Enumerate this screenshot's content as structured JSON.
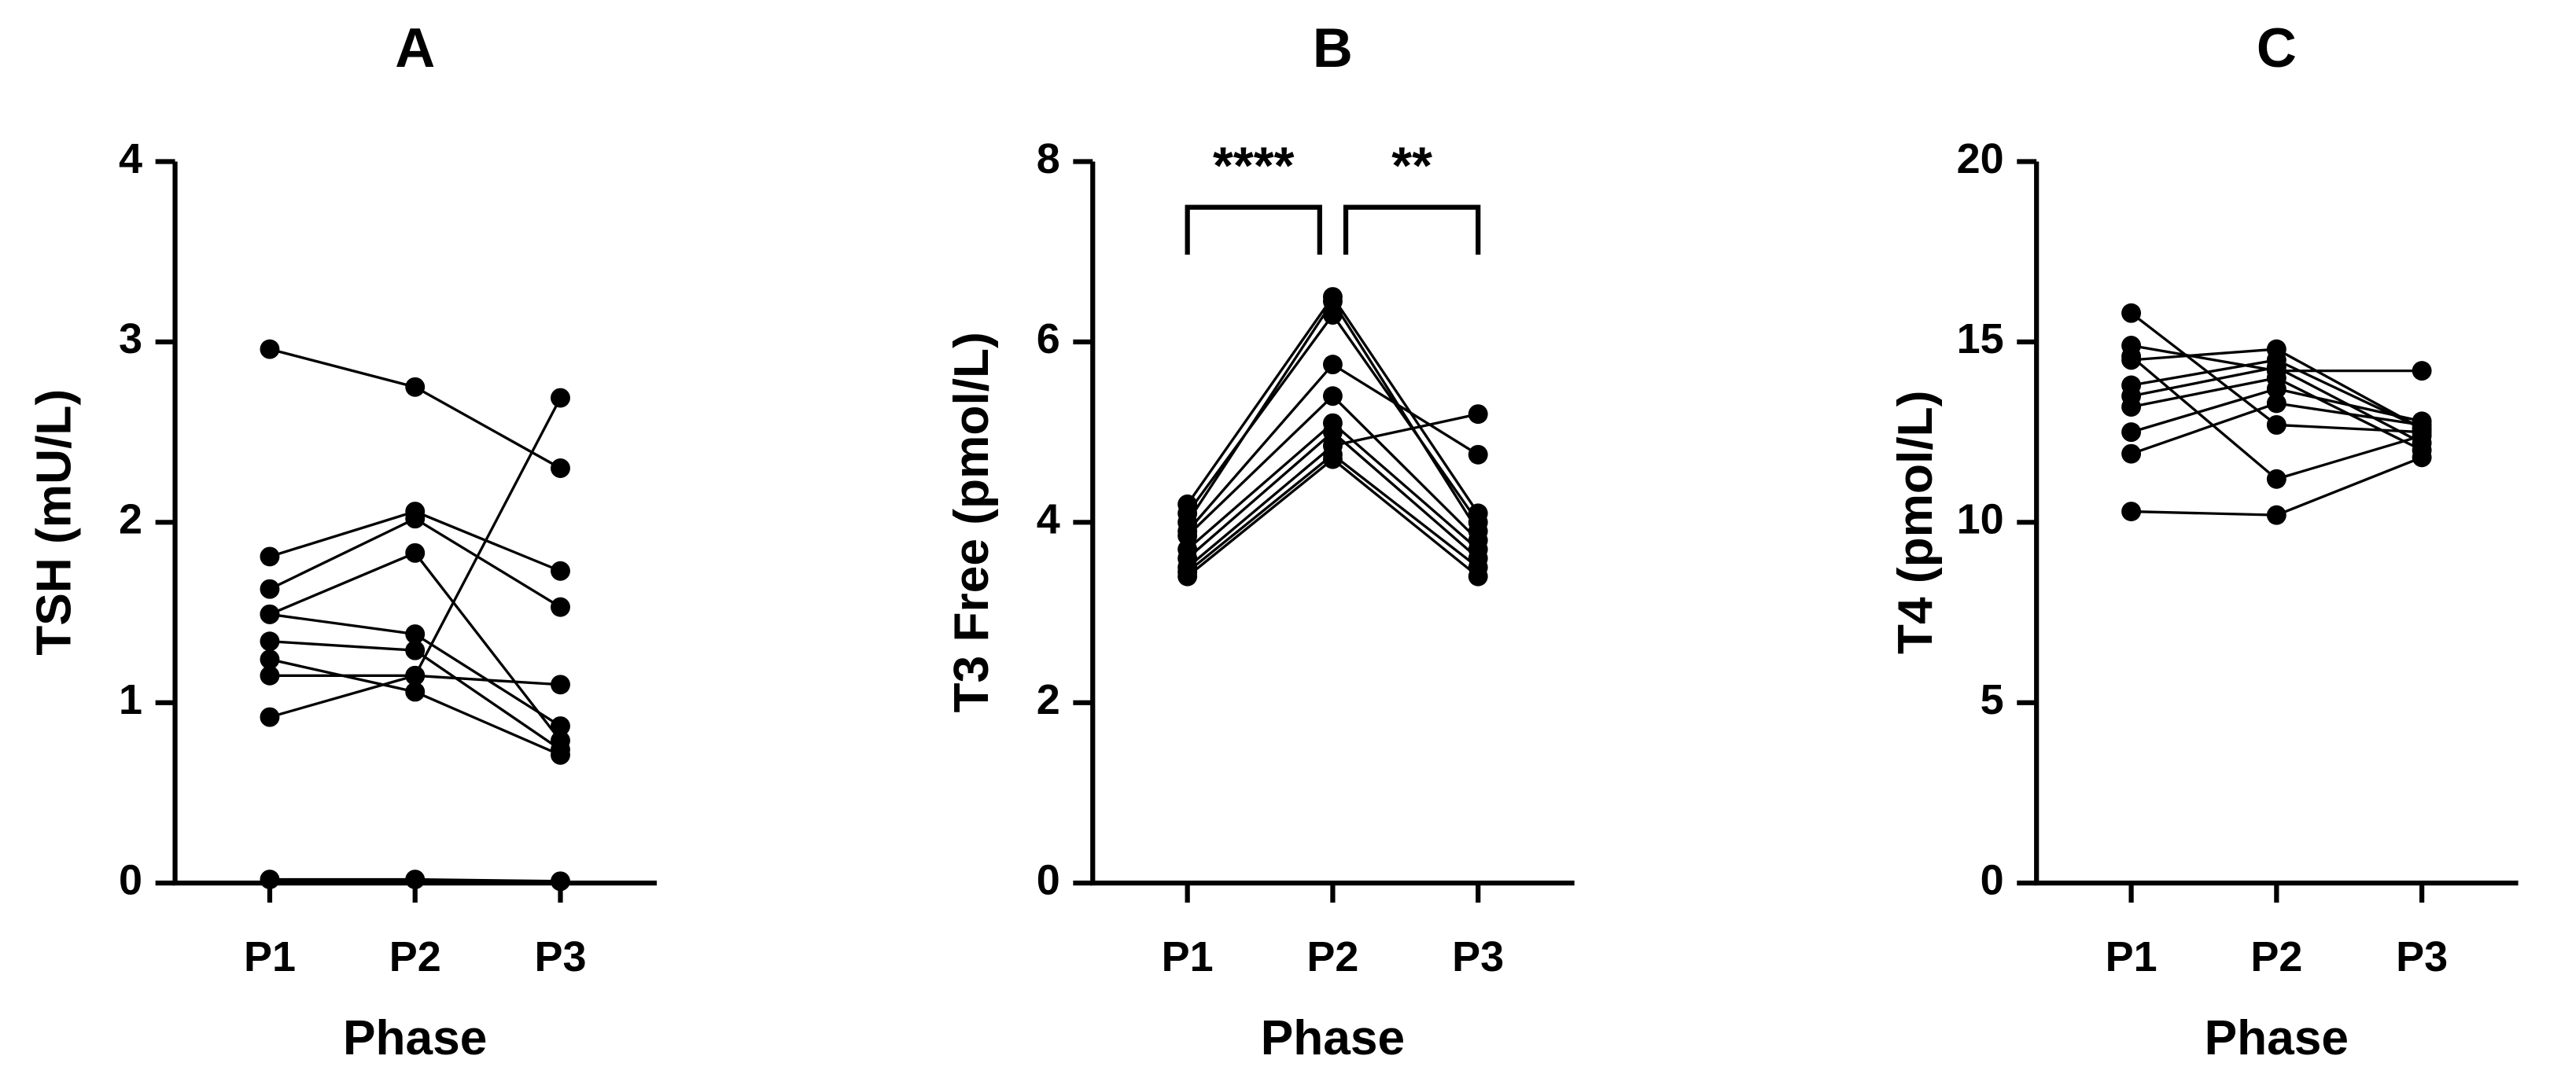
{
  "chart_data": [
    {
      "type": "line",
      "title": "A",
      "xlabel": "Phase",
      "ylabel": "TSH (mU/L)",
      "categories": [
        "P1",
        "P2",
        "P3"
      ],
      "ylim": [
        0,
        4
      ],
      "yticks": [
        0,
        1,
        2,
        3,
        4
      ],
      "grid": false,
      "color": "#000000",
      "series": [
        {
          "values": [
            2.96,
            2.75,
            2.3
          ]
        },
        {
          "values": [
            1.81,
            2.06,
            1.73
          ]
        },
        {
          "values": [
            1.63,
            2.02,
            1.53
          ]
        },
        {
          "values": [
            1.49,
            1.38,
            0.87
          ]
        },
        {
          "values": [
            1.49,
            1.83,
            0.79
          ]
        },
        {
          "values": [
            1.34,
            1.29,
            0.74
          ]
        },
        {
          "values": [
            1.24,
            1.06,
            0.71
          ]
        },
        {
          "values": [
            1.15,
            1.15,
            1.1
          ]
        },
        {
          "values": [
            0.92,
            1.15,
            2.69
          ]
        },
        {
          "values": [
            0.02,
            0.02,
            0.01
          ]
        }
      ]
    },
    {
      "type": "line",
      "title": "B",
      "xlabel": "Phase",
      "ylabel": "T3 Free (pmol/L)",
      "categories": [
        "P1",
        "P2",
        "P3"
      ],
      "ylim": [
        0,
        8
      ],
      "yticks": [
        0,
        2,
        4,
        6,
        8
      ],
      "grid": false,
      "color": "#000000",
      "annotations": [
        "****",
        "**"
      ],
      "series": [
        {
          "values": [
            4.2,
            6.5,
            4.1
          ]
        },
        {
          "values": [
            4.1,
            6.3,
            4.0
          ]
        },
        {
          "values": [
            4.0,
            6.45,
            3.9
          ]
        },
        {
          "values": [
            3.9,
            5.75,
            4.75
          ]
        },
        {
          "values": [
            3.85,
            5.4,
            3.8
          ]
        },
        {
          "values": [
            3.7,
            5.1,
            3.7
          ]
        },
        {
          "values": [
            3.6,
            5.0,
            3.6
          ]
        },
        {
          "values": [
            3.5,
            4.85,
            5.2
          ]
        },
        {
          "values": [
            3.45,
            4.75,
            3.5
          ]
        },
        {
          "values": [
            3.4,
            4.7,
            3.4
          ]
        }
      ]
    },
    {
      "type": "line",
      "title": "C",
      "xlabel": "Phase",
      "ylabel": "T4 (pmol/L)",
      "categories": [
        "P1",
        "P2",
        "P3"
      ],
      "ylim": [
        0,
        20
      ],
      "yticks": [
        0,
        5,
        10,
        15,
        20
      ],
      "grid": false,
      "color": "#000000",
      "series": [
        {
          "values": [
            15.8,
            12.7,
            12.5
          ]
        },
        {
          "values": [
            14.9,
            14.2,
            14.2
          ]
        },
        {
          "values": [
            14.6,
            11.2,
            12.4
          ]
        },
        {
          "values": [
            14.5,
            14.8,
            12.6
          ]
        },
        {
          "values": [
            13.8,
            14.5,
            12.6
          ]
        },
        {
          "values": [
            13.5,
            14.3,
            12.2
          ]
        },
        {
          "values": [
            13.2,
            14.0,
            12.0
          ]
        },
        {
          "values": [
            12.5,
            13.7,
            12.8
          ]
        },
        {
          "values": [
            11.9,
            13.3,
            12.7
          ]
        },
        {
          "values": [
            10.3,
            10.2,
            11.8
          ]
        }
      ]
    }
  ]
}
